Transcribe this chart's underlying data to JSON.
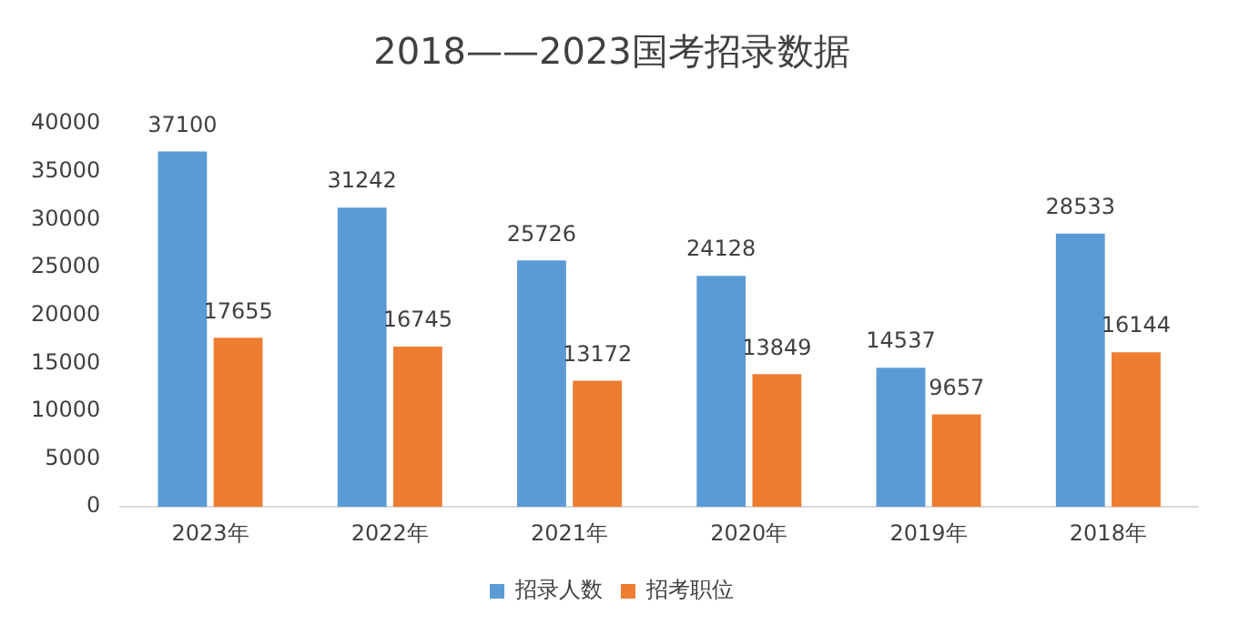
{
  "chart_data": {
    "type": "bar",
    "title": "2018——2023国考招录数据",
    "categories": [
      "2023年",
      "2022年",
      "2021年",
      "2020年",
      "2019年",
      "2018年"
    ],
    "series": [
      {
        "name": "招录人数",
        "color": "#5b9bd5",
        "values": [
          37100,
          31242,
          25726,
          24128,
          14537,
          28533
        ]
      },
      {
        "name": "招考职位",
        "color": "#ed7d31",
        "values": [
          17655,
          16745,
          13172,
          13849,
          9657,
          16144
        ]
      }
    ],
    "ylim": [
      0,
      40000
    ],
    "yticks": [
      0,
      5000,
      10000,
      15000,
      20000,
      25000,
      30000,
      35000,
      40000
    ],
    "grid": false,
    "legend": "bottom",
    "data_labels": true
  }
}
